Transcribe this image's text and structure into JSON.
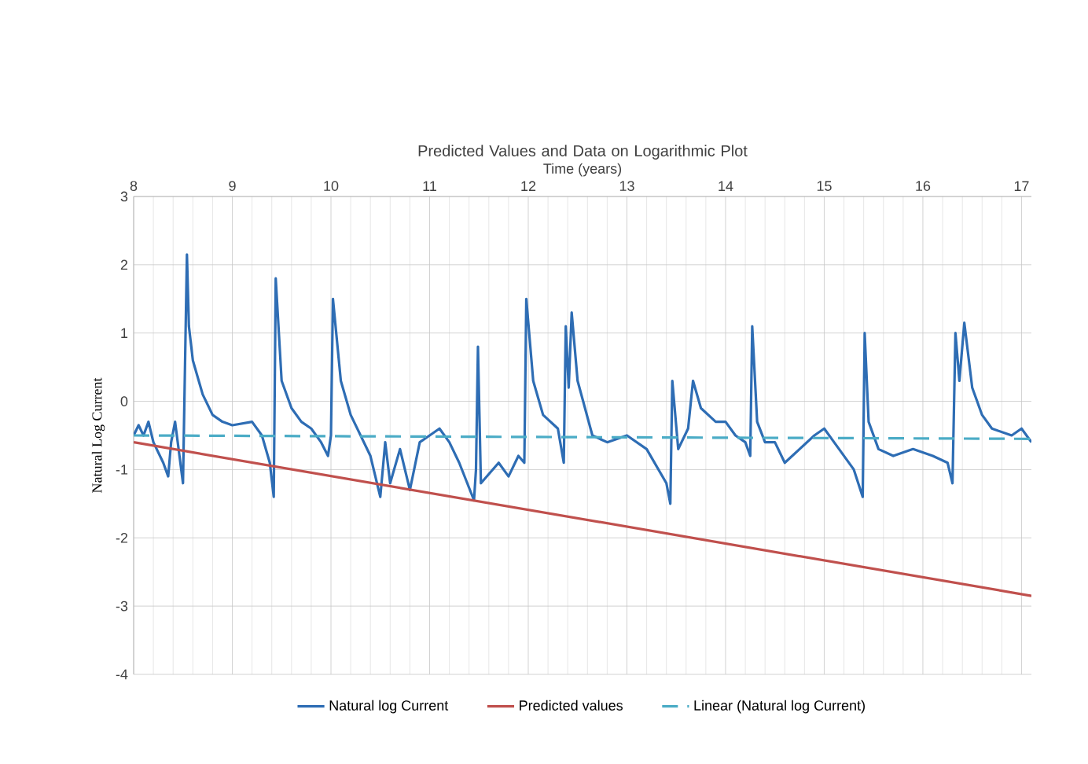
{
  "chart_data": {
    "type": "line",
    "title": "Predicted Values and Data on Logarithmic Plot",
    "xlabel": "Time (years)",
    "ylabel": "Natural Log Current",
    "xlim": [
      8,
      17.1
    ],
    "xticks": [
      8,
      9,
      10,
      11,
      12,
      13,
      14,
      15,
      16,
      17
    ],
    "ylim": [
      -4,
      3
    ],
    "yticks": [
      -4,
      -3,
      -2,
      -1,
      0,
      1,
      2,
      3
    ],
    "grid": true,
    "legend": "bottom",
    "marker": "none",
    "series": [
      {
        "name": "Natural log Current",
        "color": "#2e6db4",
        "line_style": "solid",
        "x": [
          8.0,
          8.05,
          8.1,
          8.15,
          8.2,
          8.3,
          8.35,
          8.38,
          8.42,
          8.5,
          8.54,
          8.56,
          8.6,
          8.7,
          8.8,
          8.9,
          9.0,
          9.2,
          9.3,
          9.38,
          9.42,
          9.44,
          9.5,
          9.6,
          9.7,
          9.8,
          9.9,
          9.97,
          10.0,
          10.02,
          10.1,
          10.2,
          10.3,
          10.4,
          10.5,
          10.55,
          10.6,
          10.7,
          10.8,
          10.9,
          11.0,
          11.1,
          11.2,
          11.3,
          11.45,
          11.47,
          11.49,
          11.52,
          11.7,
          11.8,
          11.9,
          11.96,
          11.98,
          12.05,
          12.15,
          12.3,
          12.36,
          12.38,
          12.41,
          12.44,
          12.5,
          12.65,
          12.8,
          13.0,
          13.2,
          13.4,
          13.44,
          13.46,
          13.52,
          13.62,
          13.67,
          13.75,
          13.9,
          14.0,
          14.1,
          14.2,
          14.25,
          14.27,
          14.32,
          14.4,
          14.5,
          14.6,
          14.75,
          14.9,
          15.0,
          15.1,
          15.2,
          15.3,
          15.39,
          15.41,
          15.45,
          15.55,
          15.7,
          15.9,
          16.1,
          16.25,
          16.3,
          16.33,
          16.37,
          16.42,
          16.5,
          16.6,
          16.7,
          16.9,
          17.0,
          17.1
        ],
        "values": [
          -0.5,
          -0.35,
          -0.5,
          -0.3,
          -0.6,
          -0.9,
          -1.1,
          -0.6,
          -0.3,
          -1.2,
          2.15,
          1.1,
          0.6,
          0.1,
          -0.2,
          -0.3,
          -0.35,
          -0.3,
          -0.5,
          -0.9,
          -1.4,
          1.8,
          0.3,
          -0.1,
          -0.3,
          -0.4,
          -0.6,
          -0.8,
          -0.5,
          1.5,
          0.3,
          -0.2,
          -0.5,
          -0.8,
          -1.4,
          -0.6,
          -1.2,
          -0.7,
          -1.3,
          -0.6,
          -0.5,
          -0.4,
          -0.6,
          -0.9,
          -1.45,
          -1.0,
          0.8,
          -1.2,
          -0.9,
          -1.1,
          -0.8,
          -0.9,
          1.5,
          0.3,
          -0.2,
          -0.4,
          -0.9,
          1.1,
          0.2,
          1.3,
          0.3,
          -0.5,
          -0.6,
          -0.5,
          -0.7,
          -1.2,
          -1.5,
          0.3,
          -0.7,
          -0.4,
          0.3,
          -0.1,
          -0.3,
          -0.3,
          -0.5,
          -0.6,
          -0.8,
          1.1,
          -0.3,
          -0.6,
          -0.6,
          -0.9,
          -0.7,
          -0.5,
          -0.4,
          -0.6,
          -0.8,
          -1.0,
          -1.4,
          1.0,
          -0.3,
          -0.7,
          -0.8,
          -0.7,
          -0.8,
          -0.9,
          -1.2,
          1.0,
          0.3,
          1.15,
          0.2,
          -0.2,
          -0.4,
          -0.5,
          -0.4,
          -0.6
        ]
      },
      {
        "name": "Predicted values",
        "color": "#c0504d",
        "line_style": "solid",
        "x": [
          8,
          17.1
        ],
        "values": [
          -0.6,
          -2.85
        ]
      },
      {
        "name": "Linear (Natural log Current)",
        "color": "#4bacc6",
        "line_style": "dashed",
        "x": [
          8,
          17.1
        ],
        "values": [
          -0.5,
          -0.55
        ]
      }
    ]
  }
}
